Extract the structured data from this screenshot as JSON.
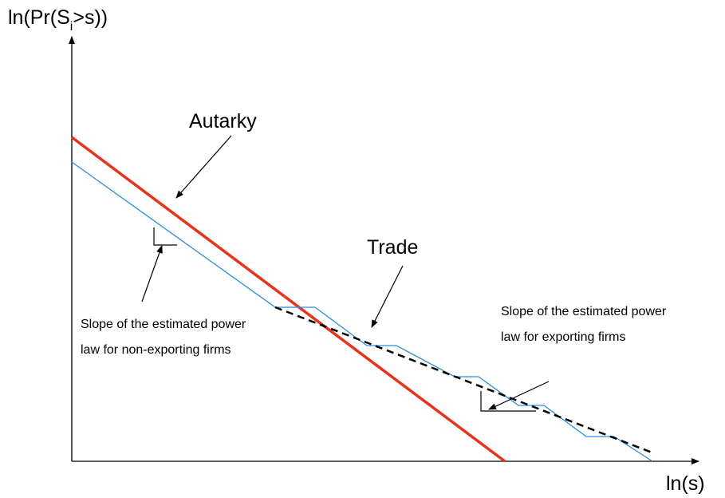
{
  "y_axis_label": {
    "before": "ln(Pr(S",
    "subscript": "i",
    "after": ">s))"
  },
  "x_axis_label": "ln(s)",
  "autarky_label": "Autarky",
  "trade_label": "Trade",
  "non_exporting_note": {
    "lines": [
      "Slope of the estimated power",
      "law for non-exporting firms"
    ]
  },
  "exporting_note": {
    "lines": [
      "Slope of the estimated power",
      "law for exporting firms"
    ]
  }
}
